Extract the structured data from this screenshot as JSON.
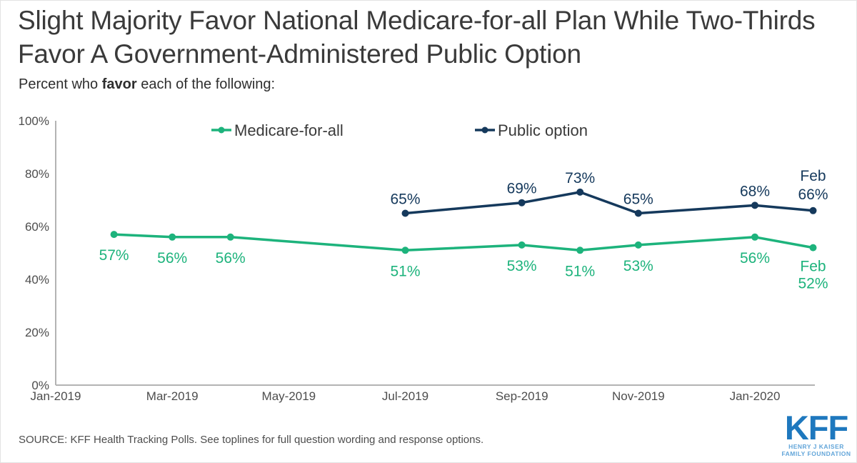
{
  "header": {
    "title": "Slight Majority Favor National Medicare-for-all Plan While Two-Thirds Favor A Government-Administered Public Option",
    "subtitle": {
      "prefix": "Percent who ",
      "bold": "favor",
      "suffix": " each of the following:"
    }
  },
  "chart_data": {
    "type": "line",
    "title": "Slight Majority Favor National Medicare-for-all Plan While Two-Thirds Favor A Government-Administered Public Option",
    "subtitle": "Percent who favor each of the following:",
    "legend_position": "top",
    "grid": false,
    "x_axis": {
      "tick_labels": [
        "Jan-2019",
        "Mar-2019",
        "May-2019",
        "Jul-2019",
        "Sep-2019",
        "Nov-2019",
        "Jan-2020"
      ],
      "months_per_tick": 2
    },
    "y_axis": {
      "tick_labels": [
        "0%",
        "20%",
        "40%",
        "60%",
        "80%",
        "100%"
      ],
      "min": 0,
      "max": 100
    },
    "colors": {
      "medicare_for_all": "#1db37c",
      "public_option": "#15395c",
      "axis": "#b3b3b3",
      "axis_text": "#4d4d4d"
    },
    "series": [
      {
        "name": "Medicare-for-all",
        "color": "#1db37c",
        "label_side": "below",
        "points": [
          {
            "month": "Feb-2019",
            "month_index": 1,
            "value": 57,
            "label_lines": [
              "57%"
            ]
          },
          {
            "month": "Mar-2019",
            "month_index": 2,
            "value": 56,
            "label_lines": [
              "56%"
            ]
          },
          {
            "month": "Apr-2019",
            "month_index": 3,
            "value": 56,
            "label_lines": [
              "56%"
            ]
          },
          {
            "month": "Jul-2019",
            "month_index": 6,
            "value": 51,
            "label_lines": [
              "51%"
            ]
          },
          {
            "month": "Sep-2019",
            "month_index": 8,
            "value": 53,
            "label_lines": [
              "53%"
            ]
          },
          {
            "month": "Oct-2019",
            "month_index": 9,
            "value": 51,
            "label_lines": [
              "51%"
            ]
          },
          {
            "month": "Nov-2019",
            "month_index": 10,
            "value": 53,
            "label_lines": [
              "53%"
            ]
          },
          {
            "month": "Jan-2020",
            "month_index": 12,
            "value": 56,
            "label_lines": [
              "56%"
            ]
          },
          {
            "month": "Feb-2020",
            "month_index": 13,
            "value": 52,
            "label_lines": [
              "Feb",
              "52%"
            ]
          }
        ]
      },
      {
        "name": "Public option",
        "color": "#15395c",
        "label_side": "above",
        "points": [
          {
            "month": "Jul-2019",
            "month_index": 6,
            "value": 65,
            "label_lines": [
              "65%"
            ]
          },
          {
            "month": "Sep-2019",
            "month_index": 8,
            "value": 69,
            "label_lines": [
              "69%"
            ]
          },
          {
            "month": "Oct-2019",
            "month_index": 9,
            "value": 73,
            "label_lines": [
              "73%"
            ]
          },
          {
            "month": "Nov-2019",
            "month_index": 10,
            "value": 65,
            "label_lines": [
              "65%"
            ]
          },
          {
            "month": "Jan-2020",
            "month_index": 12,
            "value": 68,
            "label_lines": [
              "68%"
            ]
          },
          {
            "month": "Feb-2020",
            "month_index": 13,
            "value": 66,
            "label_lines": [
              "Feb",
              "66%"
            ]
          }
        ]
      }
    ]
  },
  "footer": {
    "source": "SOURCE: KFF Health Tracking Polls. See toplines for full question wording and response options.",
    "logo": {
      "kff": "KFF",
      "line1": "HENRY J KAISER",
      "line2": "FAMILY FOUNDATION"
    }
  }
}
